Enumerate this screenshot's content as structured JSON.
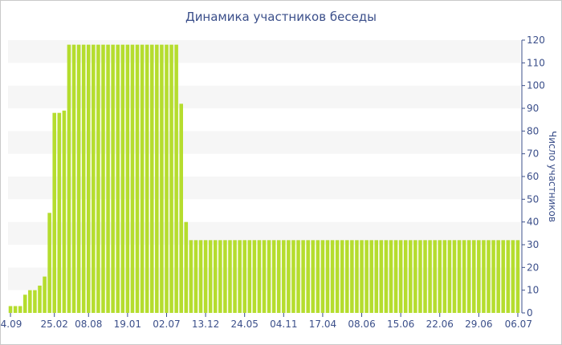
{
  "chart_data": {
    "type": "bar",
    "title": "Динамика участников беседы",
    "ylabel": "Число участников",
    "xlabel": "",
    "ylim": [
      0,
      120
    ],
    "y_ticks": [
      0,
      10,
      20,
      30,
      40,
      50,
      60,
      70,
      80,
      90,
      100,
      110,
      120
    ],
    "x_tick_labels": [
      "4.09",
      "25.02",
      "08.08",
      "19.01",
      "02.07",
      "13.12",
      "24.05",
      "04.11",
      "17.04",
      "08.06",
      "15.06",
      "22.06",
      "29.06",
      "06.07"
    ],
    "x_tick_bar_index": [
      0,
      9,
      16,
      24,
      32,
      40,
      48,
      56,
      64,
      72,
      80,
      88,
      96,
      104
    ],
    "bar_color": "#b5dd2e",
    "grid": true,
    "values": [
      3,
      3,
      3,
      8,
      10,
      10,
      12,
      16,
      44,
      88,
      88,
      89,
      118,
      118,
      118,
      118,
      118,
      118,
      118,
      118,
      118,
      118,
      118,
      118,
      118,
      118,
      118,
      118,
      118,
      118,
      118,
      118,
      118,
      118,
      118,
      92,
      40,
      32,
      32,
      32,
      32,
      32,
      32,
      32,
      32,
      32,
      32,
      32,
      32,
      32,
      32,
      32,
      32,
      32,
      32,
      32,
      32,
      32,
      32,
      32,
      32,
      32,
      32,
      32,
      32,
      32,
      32,
      32,
      32,
      32,
      32,
      32,
      32,
      32,
      32,
      32,
      32,
      32,
      32,
      32,
      32,
      32,
      32,
      32,
      32,
      32,
      32,
      32,
      32,
      32,
      32,
      32,
      32,
      32,
      32,
      32,
      32,
      32,
      32,
      32,
      32,
      32,
      32,
      32,
      32
    ]
  }
}
